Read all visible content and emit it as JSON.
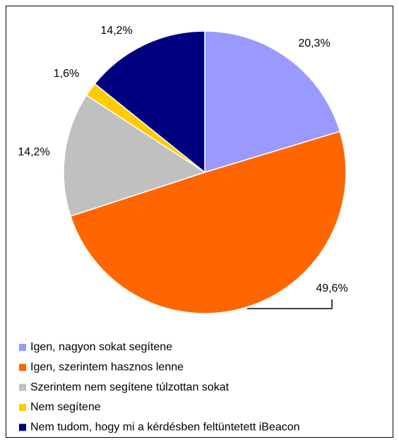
{
  "chart_data": {
    "type": "pie",
    "categories": [
      "Igen, nagyon sokat segítene",
      "Igen, szerintem hasznos lenne",
      "Szerintem nem segítene túlzottan sokat",
      "Nem segítene",
      "Nem tudom, hogy mi a kérdésben feltüntetett iBeacon"
    ],
    "values": [
      20.3,
      49.6,
      14.2,
      1.6,
      14.2
    ],
    "value_labels": [
      "20,3%",
      "49,6%",
      "14,2%",
      "1,6%",
      "14,2%"
    ],
    "colors": [
      "#9999ff",
      "#ff6600",
      "#c0c0c0",
      "#ffcc00",
      "#000080"
    ],
    "legend": "bottom"
  }
}
